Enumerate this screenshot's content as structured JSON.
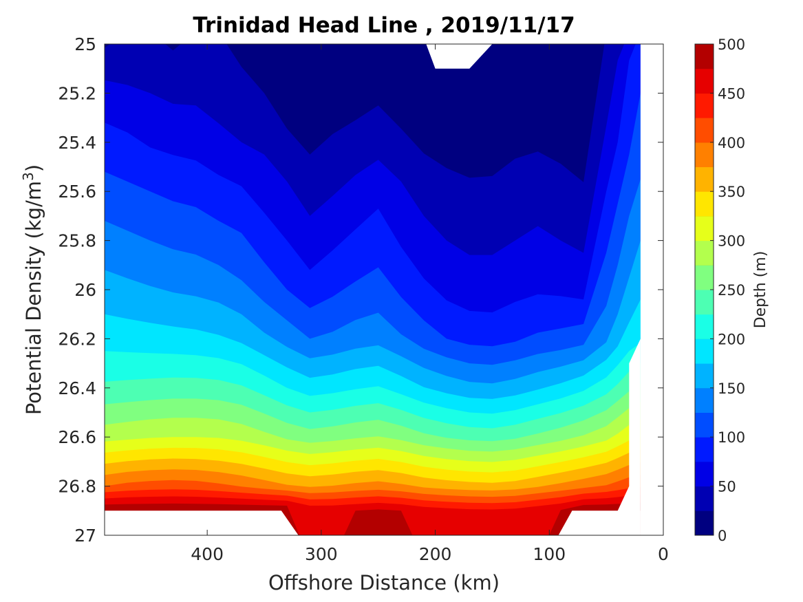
{
  "chart_data": {
    "type": "contourf",
    "title": "Trinidad Head Line , 2019/11/17",
    "xlabel": "Offshore Distance (km)",
    "ylabel": "Potential Density (kg/m",
    "ylabel_superscript": "3",
    "ylabel_suffix": ")",
    "x_direction": "reversed",
    "y_direction": "reversed",
    "xlim": [
      0,
      490
    ],
    "ylim": [
      25,
      27
    ],
    "xticks": [
      400,
      300,
      200,
      100,
      0
    ],
    "yticks": [
      "25",
      "25.2",
      "25.4",
      "25.6",
      "25.8",
      "26",
      "26.2",
      "26.4",
      "26.6",
      "26.8",
      "27"
    ],
    "colorbar": {
      "label": "Depth (m)",
      "range": [
        0,
        500
      ],
      "level_step": 25,
      "ticks": [
        0,
        50,
        100,
        150,
        200,
        250,
        300,
        350,
        400,
        450,
        500
      ],
      "colormap": "jet",
      "colors": [
        "#000080",
        "#0000b3",
        "#0000e6",
        "#001aff",
        "#004dff",
        "#0080ff",
        "#00b3ff",
        "#00e6ff",
        "#1affe6",
        "#4dffb3",
        "#80ff80",
        "#b3ff4d",
        "#e6ff1a",
        "#ffe600",
        "#ffb300",
        "#ff8000",
        "#ff4d00",
        "#ff1a00",
        "#e60000",
        "#b30000"
      ]
    },
    "x_stations_km": [
      490,
      470,
      450,
      430,
      410,
      390,
      370,
      350,
      330,
      310,
      290,
      270,
      250,
      230,
      210,
      190,
      170,
      150,
      130,
      110,
      90,
      70,
      50,
      40,
      30,
      20
    ],
    "isopycnal_depth_m": {
      "sigma": [
        25.0,
        25.2,
        25.4,
        25.6,
        25.8,
        26.0,
        26.2,
        26.4,
        26.6,
        26.8,
        26.9
      ],
      "depth_at_stations": [
        [
          22,
          25,
          28,
          22,
          26,
          30,
          12,
          8,
          6,
          4,
          6,
          8,
          14,
          10,
          6,
          2,
          2,
          4,
          6,
          8,
          6,
          3,
          30,
          45,
          70,
          90
        ],
        [
          60,
          55,
          50,
          45,
          45,
          42,
          40,
          25,
          12,
          8,
          10,
          14,
          20,
          12,
          6,
          4,
          3,
          6,
          10,
          12,
          8,
          5,
          40,
          60,
          85,
          100
        ],
        [
          85,
          80,
          72,
          68,
          65,
          55,
          50,
          45,
          30,
          20,
          28,
          34,
          40,
          30,
          20,
          15,
          12,
          14,
          20,
          22,
          18,
          12,
          55,
          75,
          95,
          110
        ],
        [
          110,
          105,
          100,
          95,
          92,
          85,
          78,
          65,
          55,
          40,
          48,
          58,
          68,
          55,
          42,
          34,
          30,
          30,
          35,
          38,
          34,
          28,
          75,
          95,
          115,
          130
        ],
        [
          135,
          130,
          125,
          120,
          117,
          110,
          104,
          88,
          75,
          60,
          70,
          80,
          88,
          72,
          58,
          50,
          45,
          45,
          50,
          55,
          50,
          45,
          95,
          115,
          135,
          150
        ],
        [
          160,
          156,
          152,
          148,
          145,
          140,
          130,
          115,
          100,
          85,
          95,
          104,
          110,
          95,
          80,
          68,
          62,
          62,
          68,
          72,
          70,
          65,
          115,
          135,
          155,
          170
        ],
        [
          190,
          188,
          186,
          184,
          182,
          178,
          170,
          155,
          140,
          125,
          130,
          138,
          142,
          128,
          112,
          100,
          92,
          90,
          96,
          104,
          108,
          115,
          145,
          165,
          185,
          195
        ],
        [
          230,
          232,
          234,
          236,
          236,
          234,
          228,
          215,
          200,
          188,
          192,
          198,
          202,
          190,
          176,
          166,
          158,
          156,
          162,
          172,
          182,
          195,
          215,
          230,
          245,
          255
        ],
        [
          290,
          294,
          298,
          300,
          300,
          298,
          292,
          282,
          270,
          262,
          266,
          272,
          276,
          268,
          256,
          248,
          242,
          240,
          246,
          256,
          266,
          278,
          292,
          305,
          318,
          325
        ],
        [
          400,
          408,
          412,
          414,
          412,
          406,
          398,
          388,
          378,
          372,
          376,
          382,
          386,
          380,
          370,
          364,
          360,
          358,
          362,
          372,
          382,
          392,
          402,
          410,
          418,
          422
        ],
        [
          500,
          500,
          500,
          500,
          500,
          500,
          500,
          500,
          500,
          470,
          470,
          475,
          480,
          475,
          465,
          460,
          456,
          455,
          458,
          468,
          478,
          500,
          500,
          500,
          500,
          500
        ]
      ]
    }
  }
}
